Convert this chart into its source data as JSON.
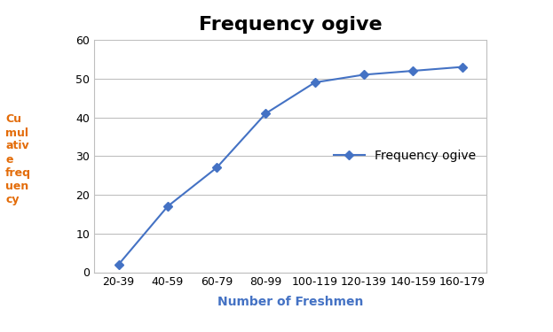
{
  "title": "Frequency ogive",
  "xlabel": "Number of Freshmen",
  "ylabel": "Cu\nmul\nativ\ne\nfreq\nuen\ncy",
  "categories": [
    "20-39",
    "40-59",
    "60-79",
    "80-99",
    "100-119",
    "120-139",
    "140-159",
    "160-179"
  ],
  "values": [
    2,
    17,
    27,
    41,
    49,
    51,
    52,
    53
  ],
  "ylim": [
    0,
    60
  ],
  "yticks": [
    0,
    10,
    20,
    30,
    40,
    50,
    60
  ],
  "line_color": "#4472C4",
  "marker": "D",
  "marker_size": 5,
  "legend_label": "Frequency ogive",
  "title_fontsize": 16,
  "xlabel_fontsize": 10,
  "ylabel_fontsize": 9,
  "tick_fontsize": 9,
  "legend_fontsize": 10,
  "background_color": "#ffffff",
  "grid_color": "#bfbfbf",
  "ylabel_color": "#E36C09",
  "xlabel_color": "#4472C4"
}
